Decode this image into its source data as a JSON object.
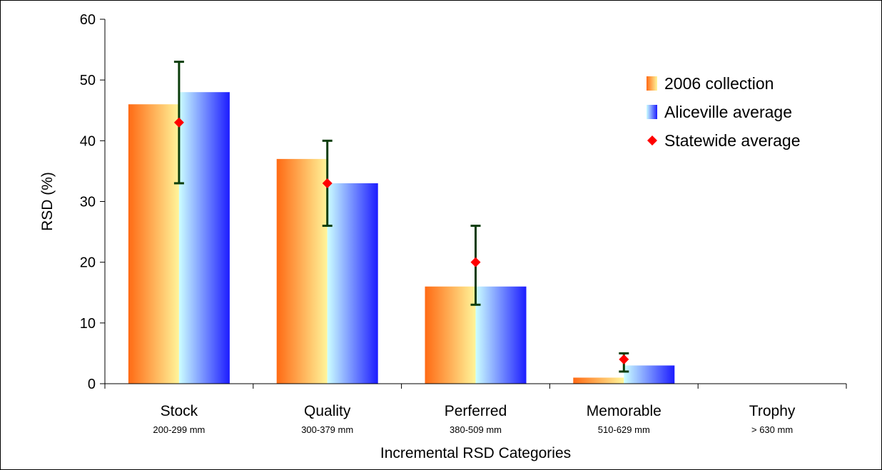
{
  "chart_data": {
    "type": "bar",
    "title": "",
    "xlabel": "Incremental RSD Categories",
    "ylabel": "RSD (%)",
    "ylim": [
      0,
      60
    ],
    "yticks": [
      "0",
      "10",
      "20",
      "30",
      "40",
      "50",
      "60"
    ],
    "categories": [
      "Stock",
      "Quality",
      "Perferred",
      "Memorable",
      "Trophy"
    ],
    "category_ranges": [
      "200-299 mm",
      "300-379 mm",
      "380-509 mm",
      "510-629 mm",
      "> 630 mm"
    ],
    "series": [
      {
        "name": "2006 collection",
        "kind": "bar",
        "values": [
          46,
          37,
          16,
          1,
          0
        ],
        "gradient": [
          "#ff6a14",
          "#fff59a"
        ]
      },
      {
        "name": "Aliceville average",
        "kind": "bar",
        "values": [
          48,
          33,
          16,
          3,
          0
        ],
        "gradient": [
          "#ccffff",
          "#1c1cff"
        ]
      },
      {
        "name": "Statewide average",
        "kind": "point",
        "values": [
          43,
          33,
          20,
          4,
          null
        ],
        "error_low": [
          33,
          26,
          13,
          2,
          null
        ],
        "error_high": [
          53,
          40,
          26,
          5,
          null
        ],
        "color": "#ff0000"
      }
    ],
    "error_bar_color": "#0b3d0b",
    "legend_position": "top-right",
    "grid": false
  }
}
